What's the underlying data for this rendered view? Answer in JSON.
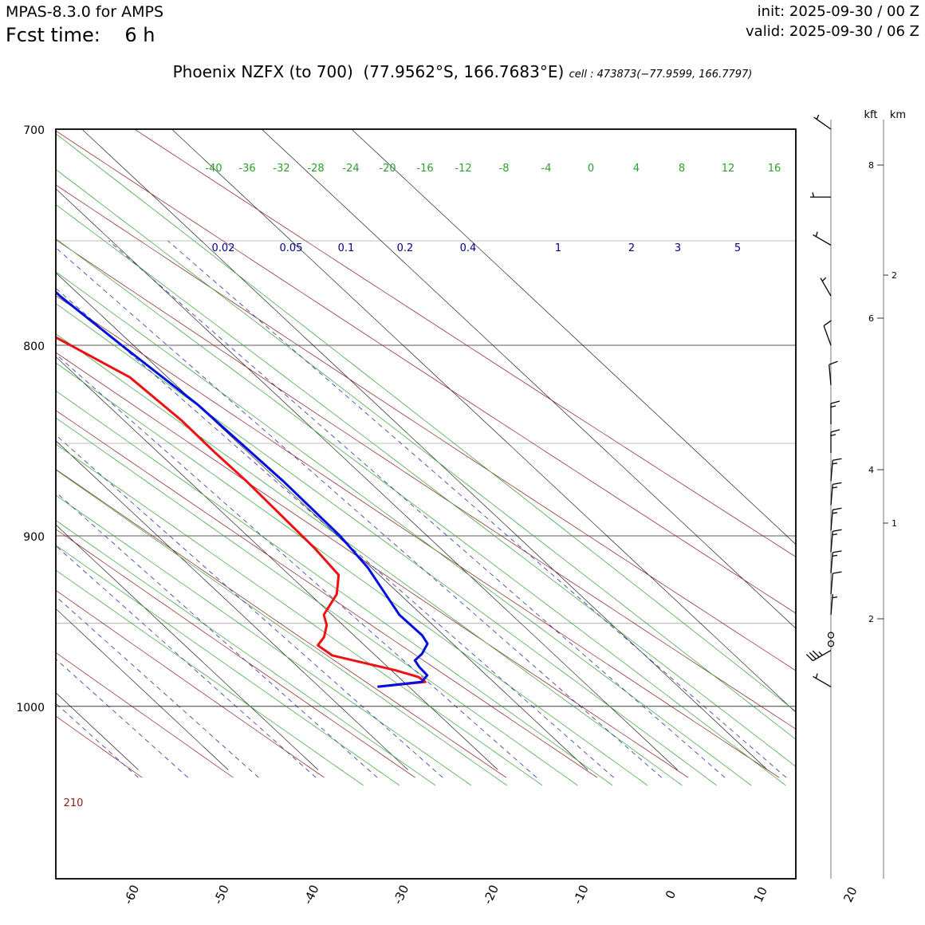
{
  "header": {
    "model": "MPAS-8.3.0 for AMPS",
    "fcst_label": "Fcst time:",
    "fcst_value": "6 h",
    "init": "init: 2025-09-30 / 00 Z",
    "valid": "valid: 2025-09-30 / 06 Z",
    "title": "Phoenix NZFX (to 700)  (77.9562°S, 166.7683°E)",
    "cell_info": "cell : 473873(−77.9599, 166.7797)"
  },
  "colors": {
    "temperature": "#ee1111",
    "dewpoint": "#0011dd",
    "dry_adiabat": "#8b1a1a",
    "moist_adiabat": "#2e9e2e",
    "mixing_ratio": "#3030aa",
    "isotherm": "#000000"
  },
  "chart_data": {
    "type": "skew-t",
    "pressure_levels_major": [
      700,
      800,
      900,
      1000
    ],
    "pressure_levels_minor": [
      750,
      850,
      950
    ],
    "pressure_range": [
      700,
      1040
    ],
    "skewed_temperature_ticks_top": [
      "-70",
      "-60",
      "-50",
      "-40",
      "-30",
      "-20",
      "-10",
      "0"
    ],
    "skewed_temperature_ticks_bottom": [
      "-60",
      "-50",
      "-40",
      "-30",
      "-20",
      "-10",
      "0",
      "10",
      "20"
    ],
    "dry_adiabats_K": [
      "220",
      "230",
      "240",
      "250",
      "260",
      "270",
      "280",
      "290",
      "300"
    ],
    "dry_adiabat_bottom_label": "210",
    "moist_adiabats_C": [
      "-40",
      "-36",
      "-32",
      "-28",
      "-24",
      "-20",
      "-16",
      "-12",
      "-8",
      "-4",
      "0",
      "4",
      "8",
      "12",
      "16"
    ],
    "mixing_ratios_gkg": [
      "0.02",
      "0.05",
      "0.1",
      "0.2",
      "0.4",
      "1",
      "2",
      "3",
      "5"
    ],
    "temperature_profile": [
      {
        "p": 988,
        "t": -23.5
      },
      {
        "p": 985,
        "t": -17.6
      },
      {
        "p": 982,
        "t": -17.8
      },
      {
        "p": 978,
        "t": -19.5
      },
      {
        "p": 969,
        "t": -24.8
      },
      {
        "p": 963,
        "t": -25.2
      },
      {
        "p": 958,
        "t": -23.5
      },
      {
        "p": 951,
        "t": -21.8
      },
      {
        "p": 945,
        "t": -20.9
      },
      {
        "p": 933,
        "t": -17.0
      },
      {
        "p": 922,
        "t": -14.5
      },
      {
        "p": 907,
        "t": -14.0
      },
      {
        "p": 870,
        "t": -13.6
      },
      {
        "p": 855,
        "t": -13.7
      },
      {
        "p": 838,
        "t": -13.6
      },
      {
        "p": 816,
        "t": -14.2
      },
      {
        "p": 796,
        "t": -17.7
      },
      {
        "p": 775,
        "t": -22.0
      },
      {
        "p": 752,
        "t": -22.4
      },
      {
        "p": 728,
        "t": -20.6
      },
      {
        "p": 700,
        "t": -18.6
      }
    ],
    "dewpoint_profile": [
      {
        "p": 988,
        "td": -23.5
      },
      {
        "p": 985,
        "td": -18.0
      },
      {
        "p": 981,
        "td": -16.6
      },
      {
        "p": 976,
        "td": -16.5
      },
      {
        "p": 972,
        "td": -16.2
      },
      {
        "p": 968,
        "td": -14.6
      },
      {
        "p": 962,
        "td": -12.8
      },
      {
        "p": 957,
        "td": -12.4
      },
      {
        "p": 945,
        "td": -12.5
      },
      {
        "p": 918,
        "td": -10.4
      },
      {
        "p": 900,
        "td": -9.7
      },
      {
        "p": 870,
        "td": -9.5
      },
      {
        "p": 830,
        "td": -9.9
      },
      {
        "p": 800,
        "td": -11.3
      },
      {
        "p": 776,
        "td": -12.3
      },
      {
        "p": 700,
        "td": -12.2
      }
    ],
    "wind_axis": {
      "units": [
        "kft",
        "km"
      ],
      "kft_ticks": [
        "8",
        "6",
        "4",
        "2"
      ],
      "km_ticks": [
        "2",
        "1"
      ]
    },
    "wind_barbs": [
      {
        "p": 700,
        "dir_deg": 305,
        "speed_kt": 5
      },
      {
        "p": 730,
        "dir_deg": 270,
        "speed_kt": 5
      },
      {
        "p": 752,
        "dir_deg": 300,
        "speed_kt": 5
      },
      {
        "p": 776,
        "dir_deg": 330,
        "speed_kt": 5
      },
      {
        "p": 800,
        "dir_deg": 340,
        "speed_kt": 10
      },
      {
        "p": 820,
        "dir_deg": 355,
        "speed_kt": 10
      },
      {
        "p": 840,
        "dir_deg": 0,
        "speed_kt": 15
      },
      {
        "p": 855,
        "dir_deg": 0,
        "speed_kt": 15
      },
      {
        "p": 870,
        "dir_deg": 5,
        "speed_kt": 15
      },
      {
        "p": 883,
        "dir_deg": 5,
        "speed_kt": 15
      },
      {
        "p": 897,
        "dir_deg": 5,
        "speed_kt": 15
      },
      {
        "p": 909,
        "dir_deg": 5,
        "speed_kt": 15
      },
      {
        "p": 921,
        "dir_deg": 5,
        "speed_kt": 15
      },
      {
        "p": 933,
        "dir_deg": 5,
        "speed_kt": 10
      },
      {
        "p": 945,
        "dir_deg": 5,
        "speed_kt": 5
      },
      {
        "p": 957,
        "dir_deg": 0,
        "speed_kt": 0
      },
      {
        "p": 962,
        "dir_deg": 0,
        "speed_kt": 0
      },
      {
        "p": 966,
        "dir_deg": 240,
        "speed_kt": 35
      },
      {
        "p": 988,
        "dir_deg": 300,
        "speed_kt": 5
      }
    ]
  }
}
